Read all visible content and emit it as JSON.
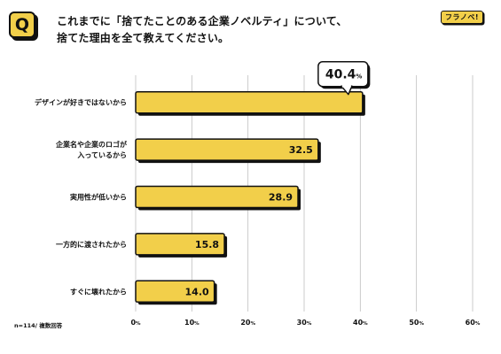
{
  "header": {
    "q_icon": "Q",
    "title_line1": "これまでに「捨てたことのある企業ノベルティ」について、",
    "title_line2": "捨てた理由を全て教えてください。",
    "logo_text": "フラノベ!"
  },
  "footnote": "n=114/ 複数回答",
  "colors": {
    "bar": "#f2cf4a",
    "shadow": "#111111",
    "grid": "#bfbfbf"
  },
  "chart_data": {
    "type": "bar",
    "orientation": "horizontal",
    "categories": [
      [
        "デザインが好きではないから"
      ],
      [
        "企業名や企業のロゴが",
        "入っているから"
      ],
      [
        "実用性が低いから"
      ],
      [
        "一方的に渡されたから"
      ],
      [
        "すぐに壊れたから"
      ]
    ],
    "values": [
      40.4,
      32.5,
      28.9,
      15.8,
      14.0
    ],
    "value_labels": [
      "40.4",
      "32.5",
      "28.9",
      "15.8",
      "14.0"
    ],
    "highlight_index": 0,
    "highlight_suffix": "%",
    "xlim": [
      0,
      60
    ],
    "xticks": [
      0,
      10,
      20,
      30,
      40,
      50,
      60
    ],
    "xtick_suffix": "%",
    "grid": true,
    "legend": "none"
  }
}
